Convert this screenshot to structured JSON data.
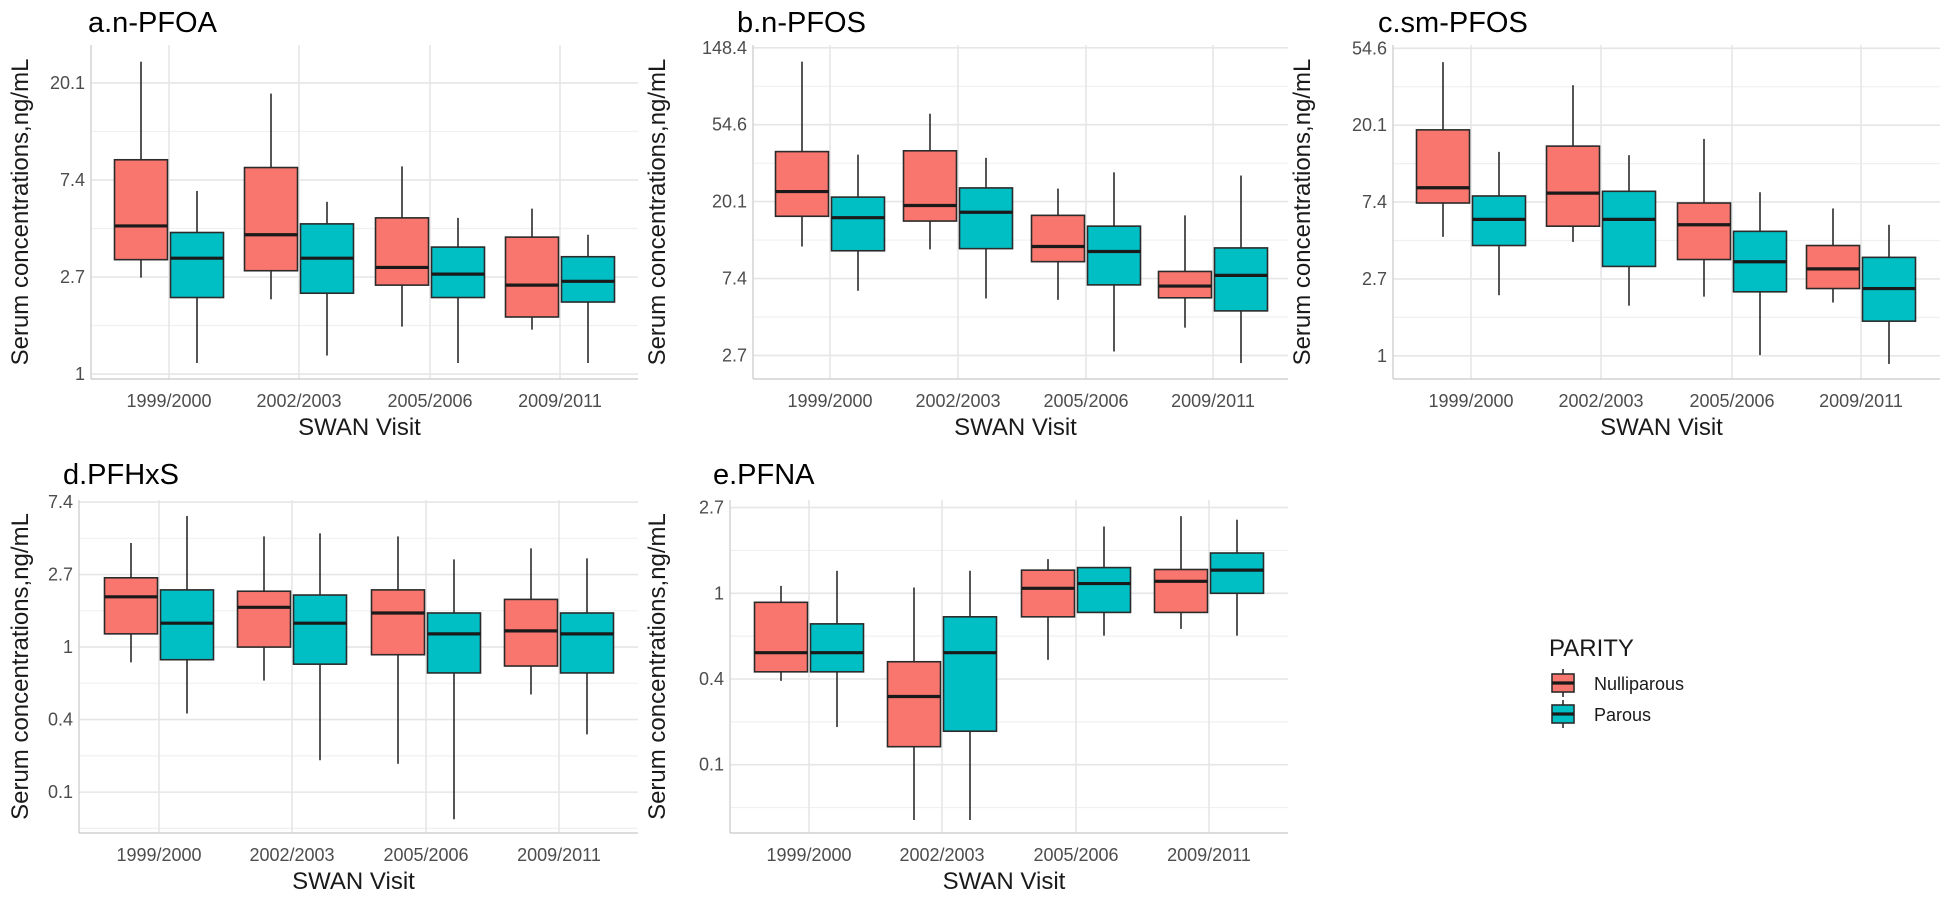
{
  "chart_data": {
    "type": "box",
    "scale": "log (natural)",
    "categories": [
      "1999/2000",
      "2002/2003",
      "2005/2006",
      "2009/2011"
    ],
    "groups": [
      "Nulliparous",
      "Parous"
    ],
    "colors": {
      "Nulliparous": "#F8766D",
      "Parous": "#00BFC4"
    },
    "xlabel": "SWAN Visit",
    "ylabel": "Serum concentrations,ng/mL",
    "legend": {
      "title": "PARITY",
      "entries": [
        "Nulliparous",
        "Parous"
      ],
      "placement": "right"
    },
    "grid": true,
    "panels": [
      {
        "title": "a.n-PFOA",
        "ylim": [
          0.95,
          29.7
        ],
        "yticks": [
          {
            "v": 1,
            "label": "1"
          },
          {
            "v": 2.718,
            "label": "2.7"
          },
          {
            "v": 7.389,
            "label": "7.4"
          },
          {
            "v": 20.09,
            "label": "20.1"
          }
        ],
        "series": [
          {
            "name": "Nulliparous",
            "boxes": [
              {
                "max": 25.0,
                "q3": 9.1,
                "median": 4.6,
                "q1": 3.25,
                "min": 2.7
              },
              {
                "max": 18.0,
                "q3": 8.4,
                "median": 4.2,
                "q1": 2.9,
                "min": 2.16
              },
              {
                "max": 8.5,
                "q3": 5.0,
                "median": 3.0,
                "q1": 2.5,
                "min": 1.63
              },
              {
                "max": 5.5,
                "q3": 4.1,
                "median": 2.5,
                "q1": 1.8,
                "min": 1.58
              }
            ]
          },
          {
            "name": "Parous",
            "boxes": [
              {
                "max": 6.6,
                "q3": 4.3,
                "median": 3.3,
                "q1": 2.2,
                "min": 1.12
              },
              {
                "max": 5.9,
                "q3": 4.7,
                "median": 3.3,
                "q1": 2.3,
                "min": 1.21
              },
              {
                "max": 5.0,
                "q3": 3.7,
                "median": 2.8,
                "q1": 2.2,
                "min": 1.12
              },
              {
                "max": 4.2,
                "q3": 3.35,
                "median": 2.6,
                "q1": 2.1,
                "min": 1.12
              }
            ]
          }
        ]
      },
      {
        "title": "b.n-PFOS",
        "ylim": [
          2.0,
          154
        ],
        "yticks": [
          {
            "v": 2.718,
            "label": "2.7"
          },
          {
            "v": 7.389,
            "label": "7.4"
          },
          {
            "v": 20.09,
            "label": "20.1"
          },
          {
            "v": 54.6,
            "label": "54.6"
          },
          {
            "v": 148.4,
            "label": "148.4"
          }
        ],
        "series": [
          {
            "name": "Nulliparous",
            "boxes": [
              {
                "max": 124,
                "q3": 38.5,
                "median": 22.9,
                "q1": 16.6,
                "min": 11.2
              },
              {
                "max": 63,
                "q3": 38.9,
                "median": 19.1,
                "q1": 15.6,
                "min": 10.8
              },
              {
                "max": 23.8,
                "q3": 16.8,
                "median": 11.2,
                "q1": 9.2,
                "min": 5.6
              },
              {
                "max": 16.8,
                "q3": 8.1,
                "median": 6.7,
                "q1": 5.75,
                "min": 3.9
              }
            ]
          },
          {
            "name": "Parous",
            "boxes": [
              {
                "max": 37,
                "q3": 21.3,
                "median": 16.3,
                "q1": 10.6,
                "min": 6.3
              },
              {
                "max": 35.5,
                "q3": 24.0,
                "median": 17.5,
                "q1": 10.9,
                "min": 5.7
              },
              {
                "max": 29.4,
                "q3": 14.6,
                "median": 10.5,
                "q1": 6.8,
                "min": 2.86
              },
              {
                "max": 28.2,
                "q3": 11.0,
                "median": 7.7,
                "q1": 4.85,
                "min": 2.46
              }
            ]
          }
        ]
      },
      {
        "title": "c.sm-PFOS",
        "ylim": [
          0.74,
          57
        ],
        "yticks": [
          {
            "v": 1,
            "label": "1"
          },
          {
            "v": 2.718,
            "label": "2.7"
          },
          {
            "v": 7.389,
            "label": "7.4"
          },
          {
            "v": 20.09,
            "label": "20.1"
          },
          {
            "v": 54.6,
            "label": "54.6"
          }
        ],
        "series": [
          {
            "name": "Nulliparous",
            "boxes": [
              {
                "max": 45.6,
                "q3": 18.9,
                "median": 8.9,
                "q1": 7.3,
                "min": 4.7
              },
              {
                "max": 33.8,
                "q3": 15.3,
                "median": 8.3,
                "q1": 5.4,
                "min": 4.4
              },
              {
                "max": 16.8,
                "q3": 7.3,
                "median": 5.5,
                "q1": 3.5,
                "min": 2.16
              },
              {
                "max": 6.8,
                "q3": 4.2,
                "median": 3.1,
                "q1": 2.4,
                "min": 2.0
              }
            ]
          },
          {
            "name": "Parous",
            "boxes": [
              {
                "max": 14.2,
                "q3": 8.0,
                "median": 5.9,
                "q1": 4.2,
                "min": 2.2
              },
              {
                "max": 13.6,
                "q3": 8.5,
                "median": 5.9,
                "q1": 3.2,
                "min": 1.92
              },
              {
                "max": 8.4,
                "q3": 5.05,
                "median": 3.4,
                "q1": 2.3,
                "min": 1.01
              },
              {
                "max": 5.5,
                "q3": 3.6,
                "median": 2.4,
                "q1": 1.57,
                "min": 0.9
              }
            ]
          }
        ]
      },
      {
        "title": "d.PFHxS",
        "ylim": [
          0.077,
          7.6
        ],
        "yticks": [
          {
            "v": 0.1353,
            "label": "0.1"
          },
          {
            "v": 0.3679,
            "label": "0.4"
          },
          {
            "v": 1,
            "label": "1"
          },
          {
            "v": 2.718,
            "label": "2.7"
          },
          {
            "v": 7.389,
            "label": "7.4"
          }
        ],
        "series": [
          {
            "name": "Nulliparous",
            "boxes": [
              {
                "max": 4.2,
                "q3": 2.6,
                "median": 2.0,
                "q1": 1.2,
                "min": 0.81
              },
              {
                "max": 4.6,
                "q3": 2.16,
                "median": 1.73,
                "q1": 1.0,
                "min": 0.63
              },
              {
                "max": 4.6,
                "q3": 2.2,
                "median": 1.6,
                "q1": 0.9,
                "min": 0.2
              },
              {
                "max": 3.9,
                "q3": 1.93,
                "median": 1.25,
                "q1": 0.77,
                "min": 0.52
              }
            ]
          },
          {
            "name": "Parous",
            "boxes": [
              {
                "max": 6.1,
                "q3": 2.2,
                "median": 1.39,
                "q1": 0.84,
                "min": 0.4
              },
              {
                "max": 4.8,
                "q3": 2.05,
                "median": 1.39,
                "q1": 0.79,
                "min": 0.21
              },
              {
                "max": 3.35,
                "q3": 1.6,
                "median": 1.2,
                "q1": 0.7,
                "min": 0.093
              },
              {
                "max": 3.4,
                "q3": 1.6,
                "median": 1.2,
                "q1": 0.7,
                "min": 0.3
              }
            ]
          }
        ]
      },
      {
        "title": "e.PFNA",
        "ylim": [
          0.061,
          2.97
        ],
        "yticks": [
          {
            "v": 0.1353,
            "label": "0.1"
          },
          {
            "v": 0.3679,
            "label": "0.4"
          },
          {
            "v": 1,
            "label": "1"
          },
          {
            "v": 2.718,
            "label": "2.7"
          }
        ],
        "series": [
          {
            "name": "Nulliparous",
            "boxes": [
              {
                "max": 1.09,
                "q3": 0.9,
                "median": 0.5,
                "q1": 0.4,
                "min": 0.36
              },
              {
                "max": 1.07,
                "q3": 0.45,
                "median": 0.3,
                "q1": 0.167,
                "min": 0.071
              },
              {
                "max": 1.49,
                "q3": 1.31,
                "median": 1.06,
                "q1": 0.76,
                "min": 0.46
              },
              {
                "max": 2.46,
                "q3": 1.32,
                "median": 1.15,
                "q1": 0.8,
                "min": 0.66
              }
            ]
          },
          {
            "name": "Parous",
            "boxes": [
              {
                "max": 1.3,
                "q3": 0.7,
                "median": 0.5,
                "q1": 0.4,
                "min": 0.21
              },
              {
                "max": 1.3,
                "q3": 0.76,
                "median": 0.5,
                "q1": 0.2,
                "min": 0.071
              },
              {
                "max": 2.18,
                "q3": 1.35,
                "median": 1.12,
                "q1": 0.8,
                "min": 0.61
              },
              {
                "max": 2.36,
                "q3": 1.6,
                "median": 1.31,
                "q1": 1.0,
                "min": 0.61
              }
            ]
          }
        ]
      }
    ]
  }
}
